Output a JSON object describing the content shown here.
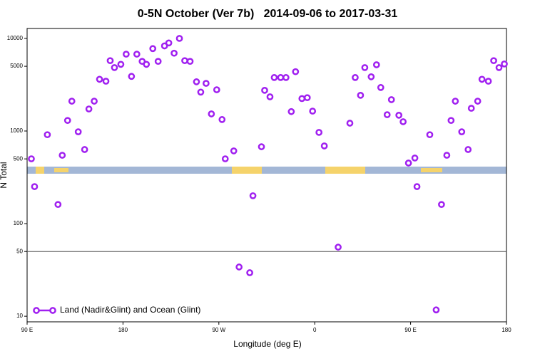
{
  "chart_data": {
    "type": "scatter",
    "title": "0-5N October (Ver 7b)   2014-09-06 to 2017-03-31",
    "x_label": "Longitude (deg E)",
    "y_label": "N Total",
    "log_y": true,
    "legend_position": "bottom-left",
    "xlim": [
      90,
      540
    ],
    "ylim": [
      8.7,
      12800
    ],
    "xticks": [
      {
        "value": 90,
        "label": "90 E"
      },
      {
        "value": 180,
        "label": "180"
      },
      {
        "value": 270,
        "label": "90 W"
      },
      {
        "value": 360,
        "label": "0"
      },
      {
        "value": 450,
        "label": "90 E"
      },
      {
        "value": 540,
        "label": "180"
      }
    ],
    "yticks": [
      10,
      50,
      100,
      500,
      1000,
      5000,
      10000
    ],
    "reference_line": 50,
    "series": [
      {
        "name": "Land (Nadir&Glint) and Ocean (Glint)",
        "color": "#a020f0",
        "x": [
          94,
          97,
          109,
          119,
          123,
          128,
          132,
          138,
          144,
          148,
          153,
          158,
          164,
          168,
          172,
          178,
          183,
          188,
          193,
          198,
          202,
          208,
          213,
          219,
          223,
          228,
          233,
          238,
          243,
          249,
          253,
          258,
          263,
          268,
          273,
          276,
          284,
          289,
          299,
          302,
          310,
          313,
          318,
          322,
          328,
          333,
          338,
          342,
          348,
          353,
          358,
          364,
          369,
          382,
          393,
          398,
          403,
          407,
          413,
          418,
          422,
          428,
          432,
          439,
          443,
          448,
          454,
          456,
          468,
          474,
          479,
          484,
          488,
          492,
          498,
          504,
          507,
          513,
          517,
          523,
          528,
          533,
          538
        ],
        "values": [
          501,
          251,
          912,
          161,
          547,
          1300,
          2100,
          980,
          631,
          1730,
          2100,
          3620,
          3450,
          5750,
          4840,
          5250,
          6760,
          3890,
          6760,
          5650,
          5250,
          7760,
          5650,
          8300,
          8930,
          6920,
          10000,
          5750,
          5650,
          3400,
          2630,
          3270,
          1530,
          2790,
          1330,
          501,
          610,
          34,
          29.5,
          200,
          676,
          2750,
          2340,
          3780,
          3780,
          3780,
          1620,
          4370,
          2240,
          2290,
          1640,
          966,
          690,
          55.7,
          1215,
          3780,
          2430,
          4840,
          3850,
          5190,
          2950,
          1500,
          2180,
          1480,
          1260,
          451,
          511,
          251,
          912,
          11.7,
          161,
          547,
          1300,
          2100,
          980,
          631,
          1760,
          2100,
          3620,
          3450,
          5750,
          4840,
          5300
        ]
      }
    ]
  }
}
